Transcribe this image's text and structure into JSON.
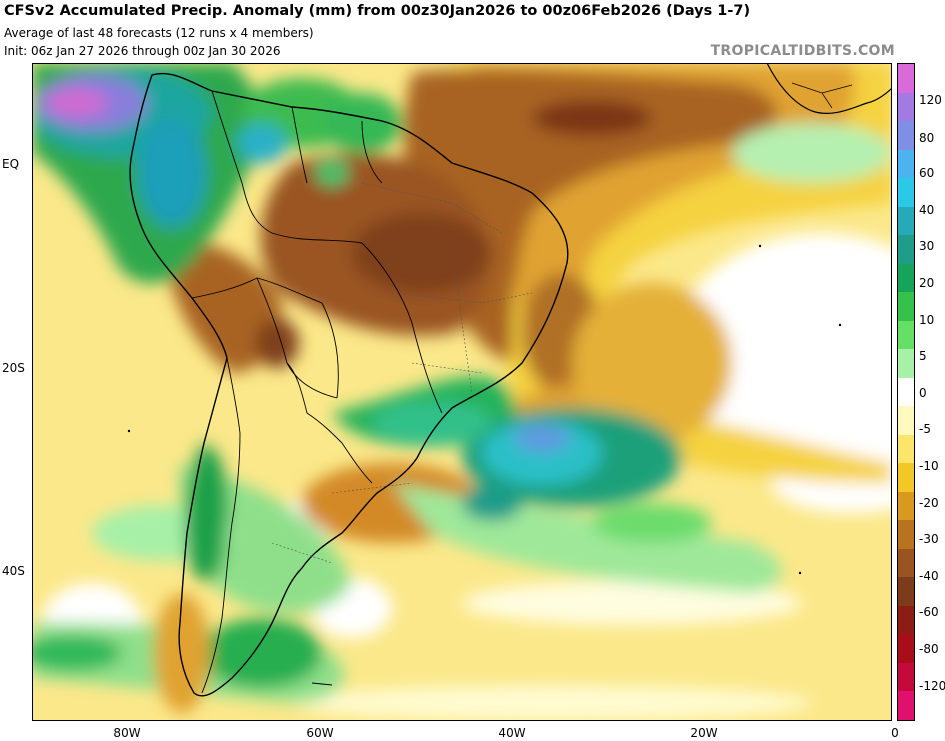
{
  "header": {
    "title": "CFSv2 Accumulated Precip. Anomaly (mm) from 00z30Jan2026 to 00z06Feb2026 (Days 1-7)",
    "subtitle1": "Average of last 48 forecasts (12 runs x 4 members)",
    "subtitle2": "Init: 06z Jan 27 2026 through 00z Jan 30 2026",
    "brand": "TROPICALTIDBITS.COM"
  },
  "axes": {
    "lat_labels": [
      "EQ",
      "20S",
      "40S"
    ],
    "lon_labels": [
      "80W",
      "60W",
      "40W",
      "20W",
      "0"
    ]
  },
  "colorbar": {
    "labels": [
      "120",
      "80",
      "60",
      "40",
      "30",
      "20",
      "10",
      "5",
      "0",
      "-5",
      "-10",
      "-20",
      "-30",
      "-40",
      "-60",
      "-80",
      "-120"
    ],
    "colors": [
      "#d96ad9",
      "#a37ae0",
      "#7f8fe3",
      "#4cb3f0",
      "#2cc8e8",
      "#26a9b8",
      "#1f9c8a",
      "#16a45a",
      "#36c24a",
      "#66df66",
      "#a7f0a7",
      "#ffffff",
      "#fff9c0",
      "#fbe56a",
      "#f2c827",
      "#d79a1e",
      "#b8731e",
      "#9a5422",
      "#7c3b1c",
      "#8c1d14",
      "#a70e1a",
      "#c40a3a",
      "#e0106e"
    ]
  },
  "map_features": {
    "anomaly_regions": [
      "dry-northeast-brazil",
      "dry-central-brazil",
      "wet-southeast-atlantic",
      "wet-andes-north",
      "wet-southern-chile",
      "dry-tropical-atlantic"
    ]
  }
}
